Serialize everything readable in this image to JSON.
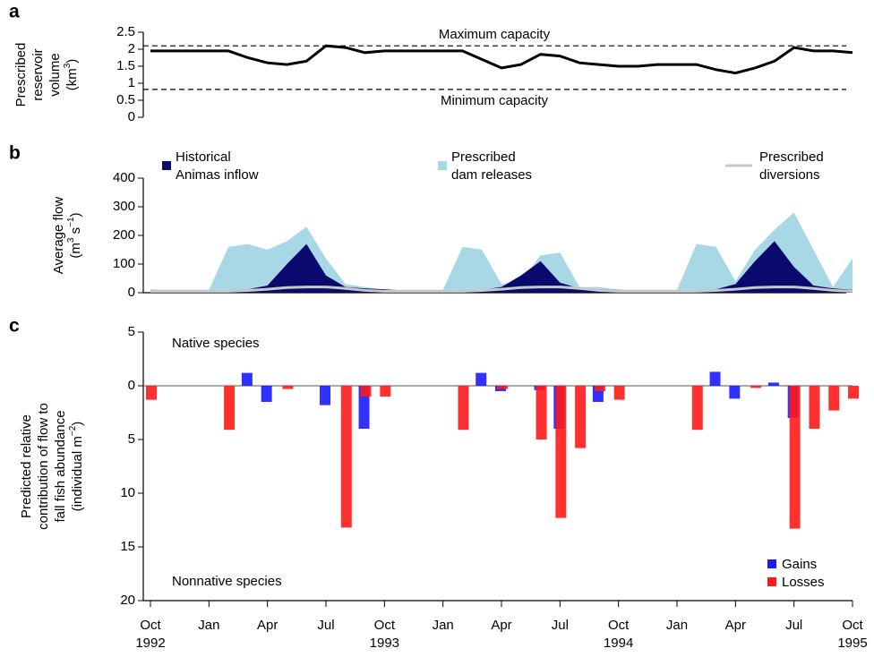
{
  "chart_data": [
    {
      "type": "line",
      "panel": "a",
      "ylabel": [
        "Prescribed",
        "reservoir",
        "volume"
      ],
      "ylabel_unit": [
        {
          "t": "(km"
        },
        {
          "t": "3",
          "sup": true
        },
        {
          "t": ")"
        }
      ],
      "x": [
        "1992-10",
        "1992-11",
        "1992-12",
        "1993-01",
        "1993-02",
        "1993-03",
        "1993-04",
        "1993-05",
        "1993-06",
        "1993-07",
        "1993-08",
        "1993-09",
        "1993-10",
        "1993-11",
        "1993-12",
        "1994-01",
        "1994-02",
        "1994-03",
        "1994-04",
        "1994-05",
        "1994-06",
        "1994-07",
        "1994-08",
        "1994-09",
        "1994-10",
        "1994-11",
        "1994-12",
        "1995-01",
        "1995-02",
        "1995-03",
        "1995-04",
        "1995-05",
        "1995-06",
        "1995-07",
        "1995-08",
        "1995-09",
        "1995-10"
      ],
      "xlim": [
        "1992-10",
        "1995-10"
      ],
      "values": [
        1.95,
        1.95,
        1.95,
        1.95,
        1.95,
        1.75,
        1.6,
        1.55,
        1.65,
        2.1,
        2.05,
        1.9,
        1.95,
        1.95,
        1.95,
        1.95,
        1.95,
        1.7,
        1.45,
        1.55,
        1.85,
        1.8,
        1.6,
        1.55,
        1.5,
        1.5,
        1.55,
        1.55,
        1.55,
        1.4,
        1.3,
        1.45,
        1.65,
        2.05,
        1.95,
        1.95,
        1.9
      ],
      "color": "#000000",
      "ylim": [
        0,
        2.5
      ],
      "yticks": [
        0,
        0.5,
        1,
        1.5,
        2,
        2.5
      ],
      "reference_lines": [
        {
          "value": 2.1,
          "label": "Maximum capacity"
        },
        {
          "value": 0.82,
          "label": "Minimum capacity"
        }
      ]
    },
    {
      "type": "area",
      "panel": "b",
      "ylabel": [
        "Average flow"
      ],
      "ylabel_unit": [
        {
          "t": "(m"
        },
        {
          "t": "3",
          "sup": true
        },
        {
          "t": " s"
        },
        {
          "t": "−1",
          "sup": true
        },
        {
          "t": ")"
        }
      ],
      "x": [
        "1992-10",
        "1992-11",
        "1992-12",
        "1993-01",
        "1993-02",
        "1993-03",
        "1993-04",
        "1993-05",
        "1993-06",
        "1993-07",
        "1993-08",
        "1993-09",
        "1993-10",
        "1993-11",
        "1993-12",
        "1994-01",
        "1994-02",
        "1994-03",
        "1994-04",
        "1994-05",
        "1994-06",
        "1994-07",
        "1994-08",
        "1994-09",
        "1994-10",
        "1994-11",
        "1994-12",
        "1995-01",
        "1995-02",
        "1995-03",
        "1995-04",
        "1995-05",
        "1995-06",
        "1995-07",
        "1995-08",
        "1995-09",
        "1995-10"
      ],
      "xlim": [
        "1992-10",
        "1995-10"
      ],
      "ylim": [
        0,
        400
      ],
      "yticks": [
        0,
        100,
        200,
        300,
        400
      ],
      "series": [
        {
          "name": [
            "Prescribed",
            "dam releases"
          ],
          "kind": "area",
          "color": "#a8d8e6",
          "values": [
            10,
            10,
            10,
            10,
            160,
            170,
            150,
            180,
            230,
            120,
            30,
            20,
            10,
            10,
            10,
            10,
            160,
            150,
            30,
            40,
            130,
            140,
            20,
            20,
            10,
            10,
            10,
            10,
            170,
            160,
            40,
            150,
            220,
            280,
            150,
            20,
            120
          ]
        },
        {
          "name": [
            "Historical",
            "Animas inflow"
          ],
          "kind": "area",
          "color": "#0a0a6e",
          "values": [
            10,
            8,
            7,
            7,
            8,
            12,
            25,
            100,
            170,
            60,
            20,
            15,
            12,
            8,
            7,
            7,
            8,
            10,
            20,
            60,
            110,
            35,
            15,
            12,
            10,
            8,
            7,
            7,
            8,
            12,
            30,
            110,
            180,
            90,
            25,
            15,
            10
          ]
        },
        {
          "name": [
            "Prescribed",
            "diversions"
          ],
          "kind": "line",
          "color": "#c8c8c8",
          "values": [
            5,
            5,
            5,
            5,
            5,
            8,
            12,
            18,
            20,
            20,
            15,
            8,
            5,
            5,
            5,
            5,
            5,
            8,
            12,
            18,
            20,
            20,
            15,
            8,
            5,
            5,
            5,
            5,
            5,
            8,
            12,
            18,
            20,
            20,
            15,
            8,
            5
          ]
        }
      ]
    },
    {
      "type": "bar",
      "panel": "c",
      "ylabel": [
        "Predicted relative",
        "contribution of flow to",
        "fall fish abundance"
      ],
      "ylabel_unit": [
        {
          "t": "(individual m"
        },
        {
          "t": "−2",
          "sup": true
        },
        {
          "t": ")"
        }
      ],
      "annotations": [
        "Native species",
        "Nonnative species"
      ],
      "x": [
        "1992-10",
        "1992-11",
        "1992-12",
        "1993-01",
        "1993-02",
        "1993-03",
        "1993-04",
        "1993-05",
        "1993-06",
        "1993-07",
        "1993-08",
        "1993-09",
        "1993-10",
        "1993-11",
        "1993-12",
        "1994-01",
        "1994-02",
        "1994-03",
        "1994-04",
        "1994-05",
        "1994-06",
        "1994-07",
        "1994-08",
        "1994-09",
        "1994-10",
        "1994-11",
        "1994-12",
        "1995-01",
        "1995-02",
        "1995-03",
        "1995-04",
        "1995-05",
        "1995-06",
        "1995-07",
        "1995-08",
        "1995-09",
        "1995-10"
      ],
      "xlim": [
        "1992-10",
        "1995-10"
      ],
      "xticks": [
        {
          "value": "1992-10",
          "label": "Oct",
          "year": "1992"
        },
        {
          "value": "1993-01",
          "label": "Jan"
        },
        {
          "value": "1993-04",
          "label": "Apr"
        },
        {
          "value": "1993-07",
          "label": "Jul"
        },
        {
          "value": "1993-10",
          "label": "Oct",
          "year": "1993"
        },
        {
          "value": "1994-01",
          "label": "Jan"
        },
        {
          "value": "1994-04",
          "label": "Apr"
        },
        {
          "value": "1994-07",
          "label": "Jul"
        },
        {
          "value": "1994-10",
          "label": "Oct",
          "year": "1994"
        },
        {
          "value": "1995-01",
          "label": "Jan"
        },
        {
          "value": "1995-04",
          "label": "Apr"
        },
        {
          "value": "1995-07",
          "label": "Jul"
        },
        {
          "value": "1995-10",
          "label": "Oct",
          "year": "1995"
        }
      ],
      "ylim": [
        -20,
        5
      ],
      "yticks": [
        {
          "value": 5,
          "label": "5"
        },
        0,
        {
          "value": -5,
          "label": "5"
        },
        {
          "value": -10,
          "label": "10"
        },
        {
          "value": -15,
          "label": "15"
        },
        {
          "value": -20,
          "label": "20"
        }
      ],
      "series": [
        {
          "name": "Gains",
          "color": "#1a1aff",
          "values": [
            0,
            0,
            0,
            0,
            0,
            1.2,
            -1.5,
            0,
            0,
            -1.8,
            0,
            -4,
            0,
            0,
            0,
            0,
            0,
            1.2,
            -0.5,
            0,
            -0.4,
            -4,
            0,
            -1.5,
            0,
            0,
            0,
            0,
            0,
            1.3,
            -1.2,
            0,
            0.3,
            -3,
            0,
            0,
            0
          ]
        },
        {
          "name": "Losses",
          "color": "#ff1a1a",
          "values": [
            -1.3,
            0,
            0,
            0,
            -4.1,
            0,
            0,
            -0.3,
            0,
            0,
            -13.2,
            -1,
            -1,
            0,
            0,
            0,
            -4.1,
            0,
            -0.3,
            0,
            -5,
            -12.3,
            -5.8,
            -0.5,
            -1.3,
            0,
            0,
            0,
            -4.1,
            0,
            0,
            -0.2,
            0,
            -13.3,
            -4,
            -2.3,
            -1.2
          ]
        }
      ]
    }
  ]
}
